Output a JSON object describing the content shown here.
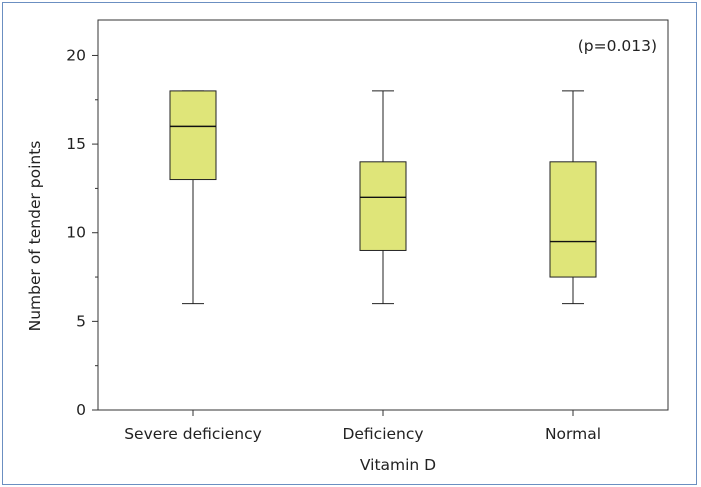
{
  "chart_data": {
    "type": "boxplot",
    "xlabel": "Vitamin D",
    "ylabel": "Number of tender points",
    "ylim": [
      0,
      22
    ],
    "yticks": [
      0,
      5,
      10,
      15,
      20
    ],
    "grid": false,
    "annotation": "(p=0.013)",
    "box_color": "#dfe579",
    "categories": [
      "Severe deficiency",
      "Deficiency",
      "Normal"
    ],
    "boxes": [
      {
        "category": "Severe deficiency",
        "min": 6,
        "q1": 13,
        "median": 16,
        "q3": 18,
        "max": 18
      },
      {
        "category": "Deficiency",
        "min": 6,
        "q1": 9,
        "median": 12,
        "q3": 14,
        "max": 18
      },
      {
        "category": "Normal",
        "min": 6,
        "q1": 7.5,
        "median": 9.5,
        "q3": 14,
        "max": 18
      }
    ]
  }
}
